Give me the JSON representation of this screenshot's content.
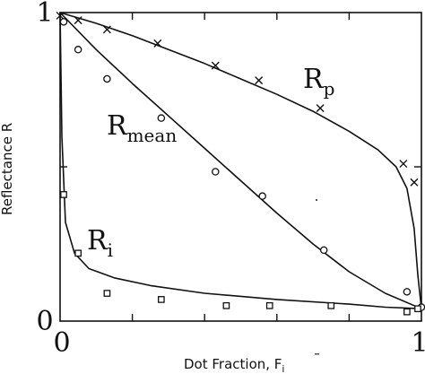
{
  "chart_data": {
    "type": "scatter",
    "xlabel": "Dot Fraction, F",
    "xlabel_sub": "i",
    "ylabel": "Reflectance R",
    "xlim": [
      0,
      1
    ],
    "ylim": [
      0,
      1
    ],
    "x_ticks": [
      0,
      0.2,
      0.4,
      0.6,
      0.8,
      1
    ],
    "y_ticks": [
      0,
      0.5,
      1
    ],
    "x_tick_labels": [
      {
        "value": 0,
        "label": "0"
      },
      {
        "value": 1,
        "label": "1"
      }
    ],
    "y_tick_labels": [
      {
        "value": 0,
        "label": "0"
      },
      {
        "value": 1,
        "label": "1"
      }
    ],
    "grid": false,
    "series": [
      {
        "label_main": "R",
        "label_sub": "p",
        "marker": "x",
        "points": [
          [
            0.0,
            0.99
          ],
          [
            0.05,
            0.975
          ],
          [
            0.13,
            0.945
          ],
          [
            0.27,
            0.9
          ],
          [
            0.43,
            0.828
          ],
          [
            0.55,
            0.78
          ],
          [
            0.72,
            0.69
          ],
          [
            0.95,
            0.51
          ],
          [
            0.98,
            0.45
          ]
        ],
        "curve": [
          [
            0,
            1.0
          ],
          [
            0.1,
            0.965
          ],
          [
            0.2,
            0.925
          ],
          [
            0.3,
            0.88
          ],
          [
            0.4,
            0.835
          ],
          [
            0.5,
            0.785
          ],
          [
            0.6,
            0.735
          ],
          [
            0.7,
            0.68
          ],
          [
            0.8,
            0.615
          ],
          [
            0.88,
            0.555
          ],
          [
            0.93,
            0.5
          ],
          [
            0.96,
            0.43
          ],
          [
            0.98,
            0.3
          ],
          [
            0.99,
            0.15
          ],
          [
            1.0,
            0.04
          ]
        ]
      },
      {
        "label_main": "R",
        "label_sub": "mean",
        "marker": "circle",
        "points": [
          [
            0.01,
            0.97
          ],
          [
            0.05,
            0.88
          ],
          [
            0.13,
            0.785
          ],
          [
            0.28,
            0.658
          ],
          [
            0.43,
            0.484
          ],
          [
            0.56,
            0.405
          ],
          [
            0.73,
            0.23
          ],
          [
            0.96,
            0.095
          ],
          [
            1.0,
            0.045
          ]
        ],
        "curve": [
          [
            0,
            1.0
          ],
          [
            0.1,
            0.88
          ],
          [
            0.2,
            0.77
          ],
          [
            0.3,
            0.665
          ],
          [
            0.4,
            0.56
          ],
          [
            0.5,
            0.455
          ],
          [
            0.6,
            0.35
          ],
          [
            0.7,
            0.25
          ],
          [
            0.8,
            0.16
          ],
          [
            0.9,
            0.09
          ],
          [
            1.0,
            0.04
          ]
        ]
      },
      {
        "label_main": "R",
        "label_sub": "i",
        "marker": "square",
        "points": [
          [
            0.01,
            0.41
          ],
          [
            0.05,
            0.22
          ],
          [
            0.13,
            0.09
          ],
          [
            0.28,
            0.07
          ],
          [
            0.46,
            0.05
          ],
          [
            0.58,
            0.05
          ],
          [
            0.75,
            0.05
          ],
          [
            0.96,
            0.03
          ],
          [
            0.99,
            0.04
          ]
        ],
        "curve": [
          [
            0.0,
            1.0
          ],
          [
            0.005,
            0.6
          ],
          [
            0.015,
            0.32
          ],
          [
            0.04,
            0.22
          ],
          [
            0.08,
            0.17
          ],
          [
            0.15,
            0.14
          ],
          [
            0.25,
            0.115
          ],
          [
            0.4,
            0.09
          ],
          [
            0.6,
            0.07
          ],
          [
            0.8,
            0.055
          ],
          [
            0.9,
            0.045
          ],
          [
            1.0,
            0.04
          ]
        ]
      }
    ]
  }
}
